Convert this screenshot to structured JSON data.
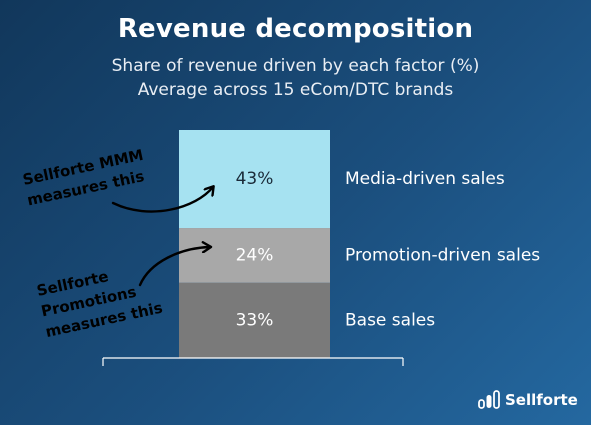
{
  "title": "Revenue decomposition",
  "subtitle": "Share of revenue driven by each factor (%)",
  "subtitle2": "Average across 15 eCom/DTC brands",
  "chart_data": {
    "type": "bar",
    "stacked": true,
    "unit": "%",
    "categories": [
      ""
    ],
    "series": [
      {
        "name": "Base sales",
        "values": [
          33
        ],
        "label": "33%",
        "color": "#7a7a7a"
      },
      {
        "name": "Promotion-driven sales",
        "values": [
          24
        ],
        "label": "24%",
        "color": "#a8a8a8"
      },
      {
        "name": "Media-driven sales",
        "values": [
          43
        ],
        "label": "43%",
        "color": "#a6e2f1"
      }
    ],
    "ylim": [
      0,
      100
    ],
    "legend": "right of bar"
  },
  "annotations": [
    {
      "lines": [
        "Sellforte MMM",
        "measures this"
      ],
      "points_to": "Media-driven sales"
    },
    {
      "lines": [
        "Sellforte",
        "Promotions",
        "measures this"
      ],
      "points_to": "Promotion-driven sales"
    }
  ],
  "brand": {
    "name": "Sellforte",
    "icon": "sellforte-logo-icon"
  }
}
